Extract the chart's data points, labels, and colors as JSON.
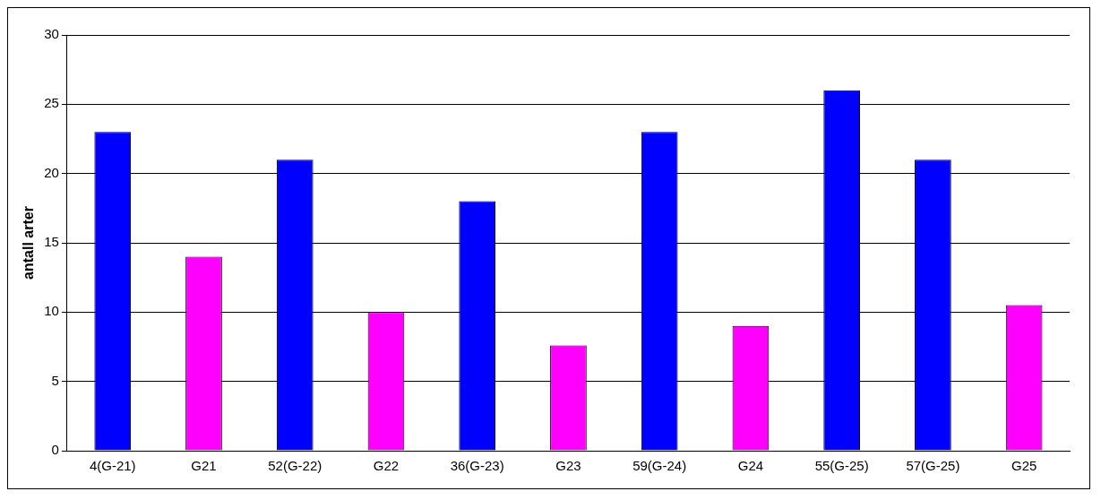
{
  "chart_data": {
    "type": "bar",
    "ylabel": "antall arter",
    "categories": [
      "4(G-21)",
      "G21",
      "52(G-22)",
      "G22",
      "36(G-23)",
      "G23",
      "59(G-24)",
      "G24",
      "55(G-25)",
      "57(G-25)",
      "G25"
    ],
    "values": [
      23,
      14,
      21,
      10,
      18,
      7.6,
      23,
      9,
      26,
      21,
      10.5
    ],
    "colors": [
      "#0000ff",
      "#ff00ff",
      "#0000ff",
      "#ff00ff",
      "#0000ff",
      "#ff00ff",
      "#0000ff",
      "#ff00ff",
      "#0000ff",
      "#0000ff",
      "#ff00ff"
    ],
    "ylim": [
      0,
      30
    ],
    "yticks": [
      0,
      5,
      10,
      15,
      20,
      25,
      30
    ],
    "grid": "y",
    "legend": false
  }
}
